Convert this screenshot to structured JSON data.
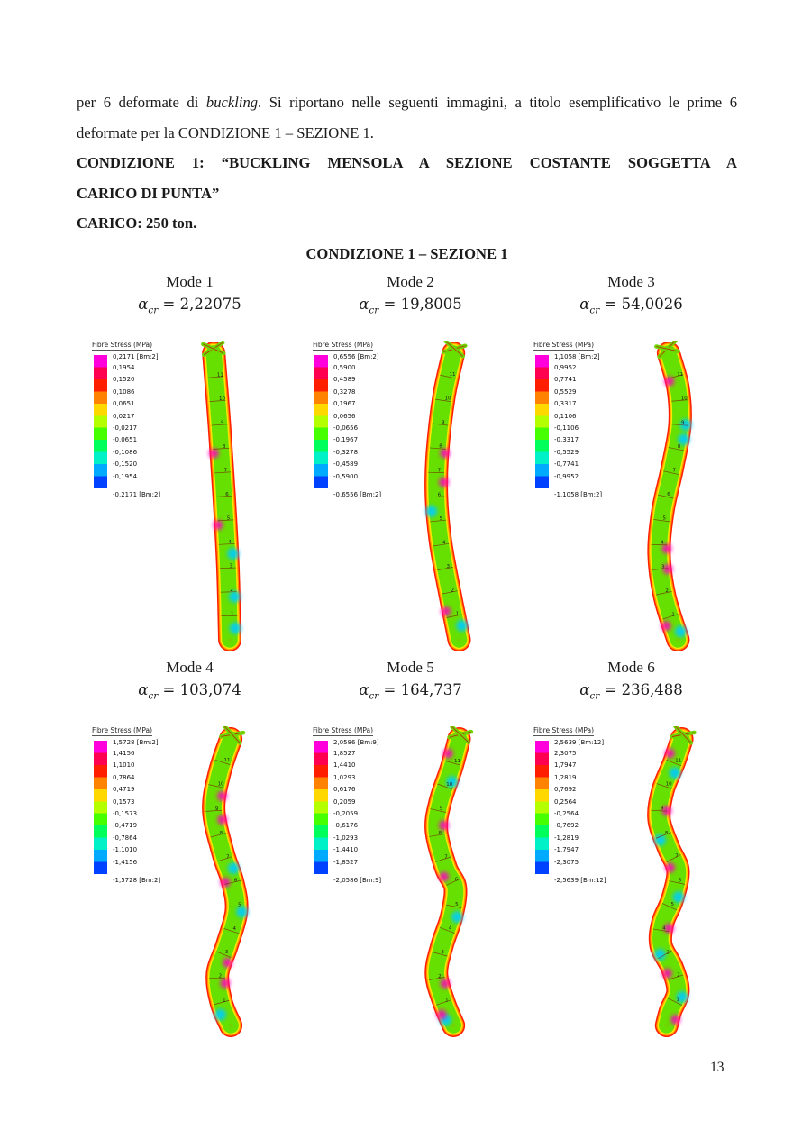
{
  "paragraph": {
    "part1": "per 6 deformate di ",
    "italic": "buckling",
    "part2": ". Si riportano nelle seguenti immagini, a titolo esemplificativo le prime 6 deformate per la CONDIZIONE 1 – SEZIONE 1."
  },
  "heading": {
    "line1": "CONDIZIONE 1: “BUCKLING MENSOLA A SEZIONE COSTANTE SOGGETTA A",
    "line2": "CARICO DI PUNTA”"
  },
  "carico": "CARICO: 250 ton.",
  "figure_title": "CONDIZIONE 1 – SEZIONE 1",
  "page_number": "13",
  "legend_title": "Fibre Stress (MPa)",
  "alpha_symbol": "α",
  "alpha_sub": "cr",
  "colorbar_colors": [
    "#ff00dc",
    "#ff0050",
    "#ff1e00",
    "#ff8200",
    "#ffd800",
    "#b4ff00",
    "#46ff00",
    "#00ff5a",
    "#00f0c8",
    "#00aaff",
    "#0040ff"
  ],
  "beam_colors": {
    "halo1": "#ff1e00",
    "halo2": "#ff9100",
    "halo3": "#ffe400",
    "body": "#66e000",
    "cold": "#00ccff",
    "hot": "#ff00be",
    "tick": "#7a2800",
    "end": "#6fd400",
    "end_edge": "#b03000",
    "label": "#222222"
  },
  "figures": [
    {
      "mode": "Mode 1",
      "alpha_value": "= 2,22075",
      "legend_values": [
        "0,2171 [Bm:2]",
        "0,1954",
        "0,1520",
        "0,1086",
        "0,0651",
        "0,0217",
        "-0,0217",
        "-0,0651",
        "-0,1086",
        "-0,1520",
        "-0,1954",
        "-0,2171 [Bm:2]"
      ],
      "shape": {
        "points": [
          [
            0,
            -16
          ],
          [
            0.25,
            -10
          ],
          [
            0.5,
            -5
          ],
          [
            0.75,
            -1
          ],
          [
            1,
            1
          ]
        ],
        "hot": [
          [
            0.35,
            1
          ],
          [
            0.6,
            1
          ]
        ],
        "cold": [
          [
            0.7,
            -1
          ],
          [
            0.85,
            -1
          ],
          [
            0.96,
            -1
          ]
        ]
      }
    },
    {
      "mode": "Mode 2",
      "alpha_value": "= 19,8005",
      "legend_values": [
        "0,6556 [Bm:2]",
        "0,5900",
        "0,4589",
        "0,3278",
        "0,1967",
        "0,0656",
        "-0,0656",
        "-0,1967",
        "-0,3278",
        "-0,4589",
        "-0,5900",
        "-0,6556 [Bm:2]"
      ],
      "shape": {
        "points": [
          [
            0,
            4
          ],
          [
            0.15,
            -6
          ],
          [
            0.35,
            -13
          ],
          [
            0.5,
            -14
          ],
          [
            0.65,
            -10
          ],
          [
            0.8,
            -2
          ],
          [
            1,
            10
          ]
        ],
        "hot": [
          [
            0.35,
            -1
          ],
          [
            0.45,
            -1
          ],
          [
            0.9,
            1
          ]
        ],
        "cold": [
          [
            0.55,
            1
          ],
          [
            0.95,
            -1
          ]
        ]
      }
    },
    {
      "mode": "Mode 3",
      "alpha_value": "= 54,0026",
      "legend_values": [
        "1,1058 [Bm:2]",
        "0,9952",
        "0,7741",
        "0,5529",
        "0,3317",
        "0,1106",
        "-0,1106",
        "-0,3317",
        "-0,5529",
        "-0,7741",
        "-0,9952",
        "-1,1058 [Bm:2]"
      ],
      "shape": {
        "points": [
          [
            0,
            -2
          ],
          [
            0.12,
            8
          ],
          [
            0.25,
            10
          ],
          [
            0.4,
            2
          ],
          [
            0.55,
            -8
          ],
          [
            0.7,
            -12
          ],
          [
            0.85,
            -6
          ],
          [
            1,
            8
          ]
        ],
        "hot": [
          [
            0.1,
            1
          ],
          [
            0.68,
            -1
          ],
          [
            0.75,
            -1
          ],
          [
            0.95,
            1
          ]
        ],
        "cold": [
          [
            0.25,
            -1
          ],
          [
            0.3,
            -1
          ],
          [
            0.97,
            -1
          ]
        ]
      }
    },
    {
      "mode": "Mode 4",
      "alpha_value": "= 103,074",
      "legend_values": [
        "1,5728 [Bm:2]",
        "1,4156",
        "1,1010",
        "0,7864",
        "0,4719",
        "0,1573",
        "-0,1573",
        "-0,4719",
        "-0,7864",
        "-1,1010",
        "-1,4156",
        "-1,5728 [Bm:2]"
      ],
      "shape": {
        "points": [
          [
            0,
            2
          ],
          [
            0.12,
            -10
          ],
          [
            0.25,
            -16
          ],
          [
            0.4,
            -6
          ],
          [
            0.5,
            4
          ],
          [
            0.6,
            8
          ],
          [
            0.72,
            -2
          ],
          [
            0.82,
            -12
          ],
          [
            0.92,
            -8
          ],
          [
            1,
            2
          ]
        ],
        "hot": [
          [
            0.2,
            -1
          ],
          [
            0.28,
            -1
          ],
          [
            0.5,
            1
          ],
          [
            0.78,
            -1
          ],
          [
            0.85,
            -1
          ]
        ],
        "cold": [
          [
            0.45,
            -1
          ],
          [
            0.6,
            -1
          ],
          [
            0.96,
            1
          ]
        ]
      }
    },
    {
      "mode": "Mode 5",
      "alpha_value": "= 164,737",
      "legend_values": [
        "2,0586 [Bm:9]",
        "1,8527",
        "1,4410",
        "1,0293",
        "0,6176",
        "0,2059",
        "-0,2059",
        "-0,6176",
        "-1,0293",
        "-1,4410",
        "-1,8527",
        "-2,0586 [Bm:9]"
      ],
      "shape": {
        "points": [
          [
            0,
            10
          ],
          [
            0.1,
            2
          ],
          [
            0.22,
            -10
          ],
          [
            0.32,
            -14
          ],
          [
            0.45,
            -4
          ],
          [
            0.52,
            6
          ],
          [
            0.62,
            2
          ],
          [
            0.72,
            -8
          ],
          [
            0.82,
            -14
          ],
          [
            0.92,
            -6
          ],
          [
            1,
            4
          ]
        ],
        "hot": [
          [
            0.05,
            1
          ],
          [
            0.3,
            -1
          ],
          [
            0.48,
            1
          ],
          [
            0.85,
            -1
          ],
          [
            0.96,
            1
          ]
        ],
        "cold": [
          [
            0.15,
            -1
          ],
          [
            0.62,
            -1
          ],
          [
            0.98,
            1
          ]
        ]
      }
    },
    {
      "mode": "Mode 6",
      "alpha_value": "= 236,488",
      "legend_values": [
        "2,5639 [Bm:12]",
        "2,3075",
        "1,7947",
        "1,2819",
        "0,7692",
        "0,2564",
        "-0,2564",
        "-0,7692",
        "-1,2819",
        "-1,7947",
        "-2,3075",
        "-2,5639 [Bm:12]"
      ],
      "shape": {
        "points": [
          [
            0,
            12
          ],
          [
            0.08,
            4
          ],
          [
            0.18,
            -8
          ],
          [
            0.28,
            -12
          ],
          [
            0.38,
            -2
          ],
          [
            0.46,
            8
          ],
          [
            0.56,
            2
          ],
          [
            0.64,
            -8
          ],
          [
            0.72,
            -10
          ],
          [
            0.8,
            2
          ],
          [
            0.88,
            8
          ],
          [
            0.95,
            0
          ],
          [
            1,
            -4
          ]
        ],
        "hot": [
          [
            0.05,
            1
          ],
          [
            0.25,
            -1
          ],
          [
            0.45,
            1
          ],
          [
            0.66,
            -1
          ],
          [
            0.82,
            1
          ],
          [
            0.98,
            -1
          ]
        ],
        "cold": [
          [
            0.12,
            -1
          ],
          [
            0.35,
            1
          ],
          [
            0.55,
            -1
          ],
          [
            0.75,
            1
          ],
          [
            0.9,
            -1
          ]
        ]
      }
    }
  ]
}
